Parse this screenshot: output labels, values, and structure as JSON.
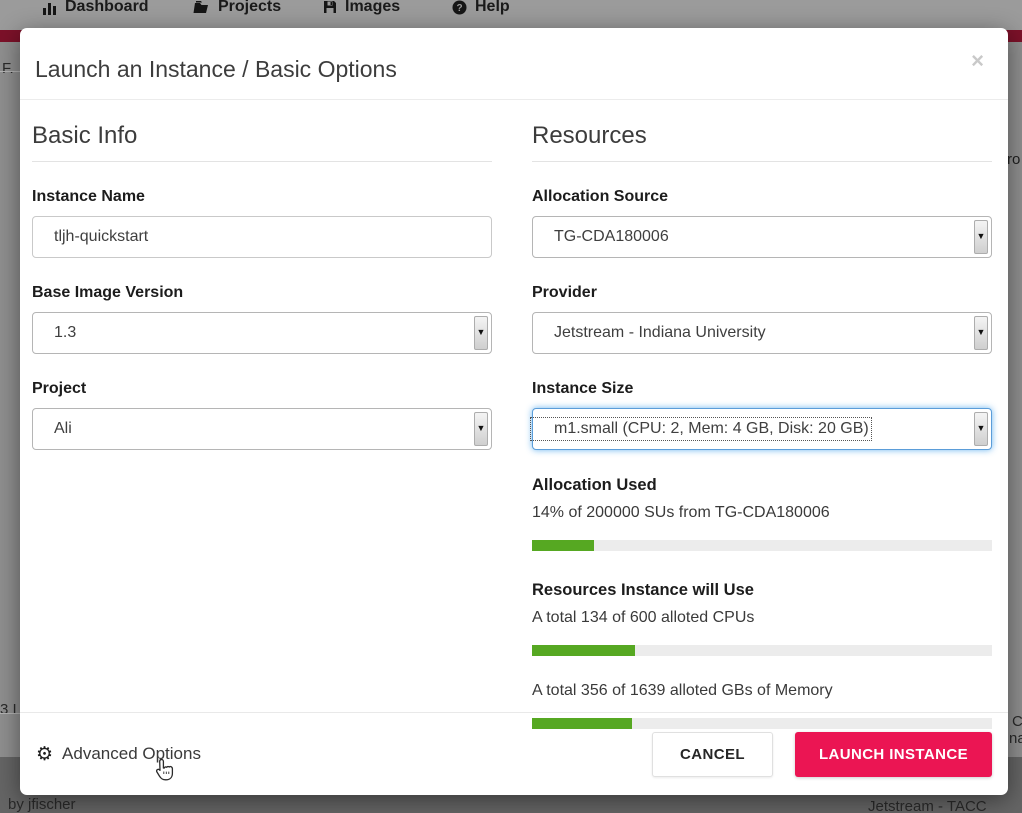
{
  "page": {
    "nav": {
      "items": [
        {
          "label": "Dashboard",
          "icon": "bar-chart-icon"
        },
        {
          "label": "Projects",
          "icon": "folder-icon"
        },
        {
          "label": "Images",
          "icon": "save-icon"
        },
        {
          "label": "Help",
          "icon": "help-icon"
        }
      ]
    },
    "background_fragments": {
      "top_left": "F.",
      "bottom_left": "3 I",
      "right_top": "ro",
      "right_c": "C",
      "right_na": "na",
      "footer_left": "by jfischer",
      "footer_right": "Jetstream - TACC"
    }
  },
  "modal": {
    "title": "Launch an Instance / Basic Options",
    "close_label": "×",
    "basic_info": {
      "heading": "Basic Info",
      "instance_name": {
        "label": "Instance Name",
        "value": "tljh-quickstart"
      },
      "base_image_version": {
        "label": "Base Image Version",
        "value": "1.3"
      },
      "project": {
        "label": "Project",
        "value": "Ali"
      }
    },
    "resources": {
      "heading": "Resources",
      "allocation_source": {
        "label": "Allocation Source",
        "value": "TG-CDA180006"
      },
      "provider": {
        "label": "Provider",
        "value": "Jetstream - Indiana University"
      },
      "instance_size": {
        "label": "Instance Size",
        "value": "m1.small (CPU: 2, Mem: 4 GB, Disk: 20 GB)"
      },
      "allocation_used": {
        "label": "Allocation Used",
        "text": "14% of 200000 SUs from TG-CDA180006",
        "percent": 13.5
      },
      "usage_heading": "Resources Instance will Use",
      "cpu": {
        "text": "A total 134 of 600 alloted CPUs",
        "percent": 22.3
      },
      "memory": {
        "text": "A total 356 of 1639 alloted GBs of Memory",
        "percent": 21.7
      }
    },
    "footer": {
      "advanced_options": "Advanced Options",
      "cancel": "CANCEL",
      "launch": "LAUNCH INSTANCE"
    }
  },
  "colors": {
    "accent_green": "#56a822",
    "accent_pink": "#eb1553",
    "maroon": "#7c1129"
  }
}
